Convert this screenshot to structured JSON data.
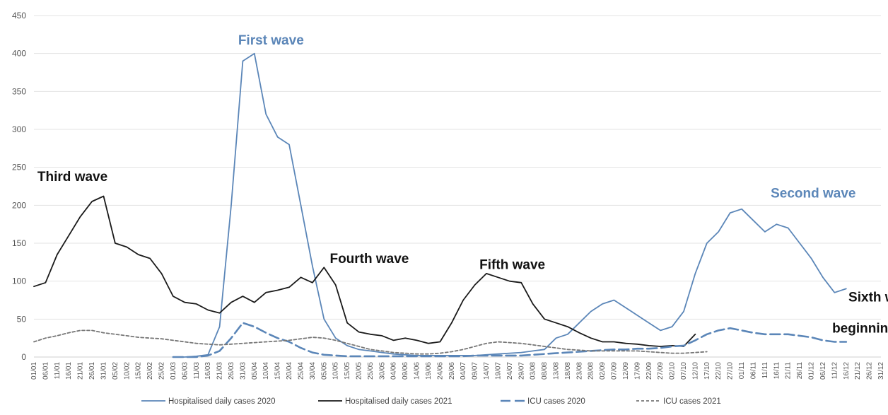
{
  "chart_data": {
    "type": "line",
    "title": "",
    "xlabel": "",
    "ylabel": "",
    "ylim": [
      0,
      450
    ],
    "yticks": [
      0,
      50,
      100,
      150,
      200,
      250,
      300,
      350,
      400,
      450
    ],
    "grid": "horizontal",
    "legend_position": "bottom",
    "x_tick_labels": [
      "01/01",
      "06/01",
      "11/01",
      "16/01",
      "21/01",
      "26/01",
      "31/01",
      "05/02",
      "10/02",
      "15/02",
      "20/02",
      "25/02",
      "01/03",
      "06/03",
      "11/03",
      "16/03",
      "21/03",
      "26/03",
      "31/03",
      "05/04",
      "10/04",
      "15/04",
      "20/04",
      "25/04",
      "30/04",
      "05/05",
      "10/05",
      "15/05",
      "20/05",
      "25/05",
      "30/05",
      "04/06",
      "09/06",
      "14/06",
      "19/06",
      "24/06",
      "29/06",
      "04/07",
      "09/07",
      "14/07",
      "19/07",
      "24/07",
      "29/07",
      "03/08",
      "08/08",
      "13/08",
      "18/08",
      "23/08",
      "28/08",
      "02/09",
      "07/09",
      "12/09",
      "17/09",
      "22/09",
      "27/09",
      "02/10",
      "07/10",
      "12/10",
      "17/10",
      "22/10",
      "27/10",
      "01/11",
      "06/11",
      "11/11",
      "16/11",
      "21/11",
      "26/11",
      "01/12",
      "06/12",
      "11/12",
      "16/12",
      "21/12",
      "26/12",
      "31/12"
    ],
    "series": [
      {
        "name": "Hospitalised daily cases 2020",
        "color": "#5b86b8",
        "dash": "solid",
        "start_tick": 12,
        "values": [
          0,
          0,
          1,
          3,
          40,
          200,
          390,
          400,
          320,
          290,
          280,
          200,
          120,
          50,
          25,
          15,
          10,
          8,
          6,
          4,
          3,
          2,
          2,
          2,
          2,
          2,
          2,
          3,
          4,
          5,
          6,
          8,
          10,
          25,
          30,
          45,
          60,
          70,
          75,
          65,
          55,
          45,
          35,
          40,
          60,
          110,
          150,
          165,
          190,
          195,
          180,
          165,
          175,
          170,
          150,
          130,
          105,
          85,
          90
        ]
      },
      {
        "name": "Hospitalised daily cases 2021",
        "color": "#1a1a1a",
        "dash": "solid",
        "start_tick": 0,
        "values": [
          93,
          98,
          135,
          160,
          185,
          205,
          212,
          150,
          145,
          135,
          130,
          110,
          80,
          72,
          70,
          62,
          58,
          72,
          80,
          72,
          85,
          88,
          92,
          105,
          98,
          118,
          95,
          45,
          33,
          30,
          28,
          22,
          25,
          22,
          18,
          20,
          45,
          75,
          95,
          110,
          105,
          100,
          98,
          70,
          50,
          45,
          40,
          32,
          25,
          20,
          20,
          18,
          17,
          15,
          14,
          15,
          14,
          30
        ]
      },
      {
        "name": "ICU cases 2020",
        "color": "#5b86b8",
        "dash": "dashed",
        "start_tick": 12,
        "values": [
          0,
          0,
          0,
          2,
          8,
          25,
          45,
          40,
          32,
          25,
          20,
          12,
          6,
          3,
          2,
          1,
          1,
          1,
          1,
          1,
          1,
          1,
          1,
          1,
          1,
          1,
          2,
          2,
          2,
          2,
          2,
          3,
          4,
          5,
          6,
          7,
          8,
          9,
          10,
          10,
          11,
          11,
          12,
          14,
          15,
          22,
          30,
          35,
          38,
          35,
          32,
          30,
          30,
          30,
          28,
          26,
          22,
          20,
          20
        ]
      },
      {
        "name": "ICU cases 2021",
        "color": "#777777",
        "dash": "dotted",
        "start_tick": 0,
        "values": [
          20,
          25,
          28,
          32,
          35,
          35,
          32,
          30,
          28,
          26,
          25,
          24,
          22,
          20,
          18,
          17,
          16,
          17,
          18,
          19,
          20,
          21,
          22,
          24,
          26,
          25,
          22,
          18,
          14,
          10,
          8,
          6,
          5,
          4,
          4,
          5,
          7,
          10,
          14,
          18,
          20,
          19,
          18,
          16,
          14,
          12,
          10,
          9,
          8,
          8,
          8,
          8,
          8,
          7,
          6,
          5,
          5,
          6,
          7
        ]
      }
    ],
    "annotations": [
      {
        "text": "First wave",
        "color": "#5b86b8",
        "x_tick": 17.6,
        "y": 412
      },
      {
        "text": "Third wave",
        "color": "#111111",
        "x_tick": 0.3,
        "y": 232
      },
      {
        "text": "Fourth wave",
        "color": "#111111",
        "x_tick": 25.5,
        "y": 124
      },
      {
        "text": "Fifth wave",
        "color": "#111111",
        "x_tick": 38.4,
        "y": 116
      },
      {
        "text": "Second wave",
        "color": "#5b86b8",
        "x_tick": 63.5,
        "y": 210
      },
      {
        "text": "Sixth wave",
        "color": "#111111",
        "x_tick": 70.2,
        "y": 73
      },
      {
        "text": "beginning",
        "color": "#111111",
        "x_tick": 68.8,
        "y": 32
      }
    ]
  }
}
